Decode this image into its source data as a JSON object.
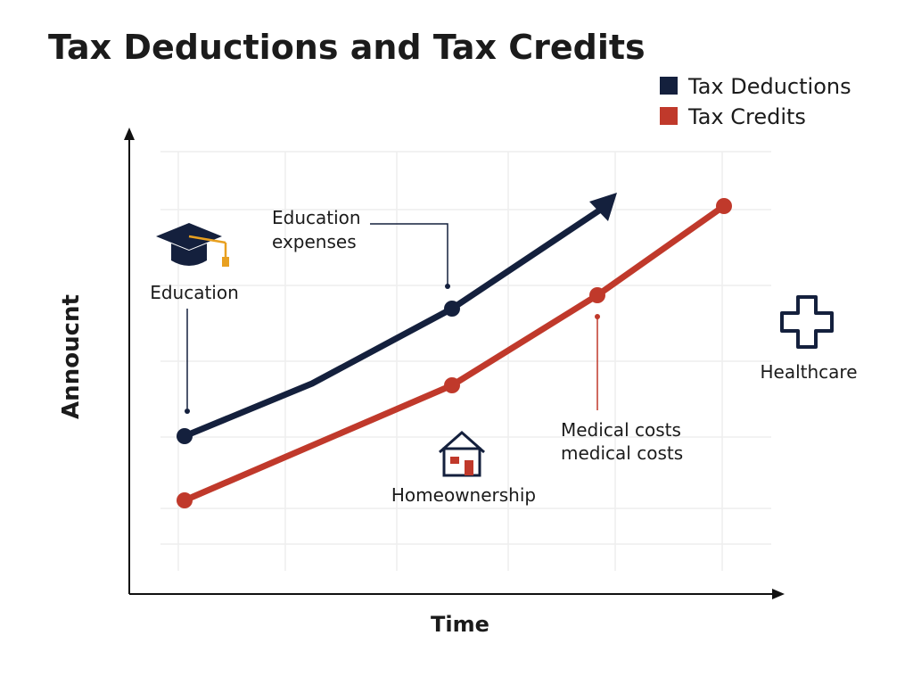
{
  "header": {
    "title": "Tax Deductions and Tax Credits"
  },
  "legend": {
    "items": [
      {
        "label": "Tax Deductions"
      },
      {
        "label": "Tax Credits"
      }
    ]
  },
  "axes": {
    "y_label": "Annoucnt",
    "x_label": "Time"
  },
  "annotations": {
    "education_expenses": [
      "Education",
      "expenses"
    ],
    "education": "Education",
    "homeownership": "Homeownership",
    "medical_costs": [
      "Medical costs",
      "medical costs"
    ],
    "healthcare": "Healthcare"
  }
}
